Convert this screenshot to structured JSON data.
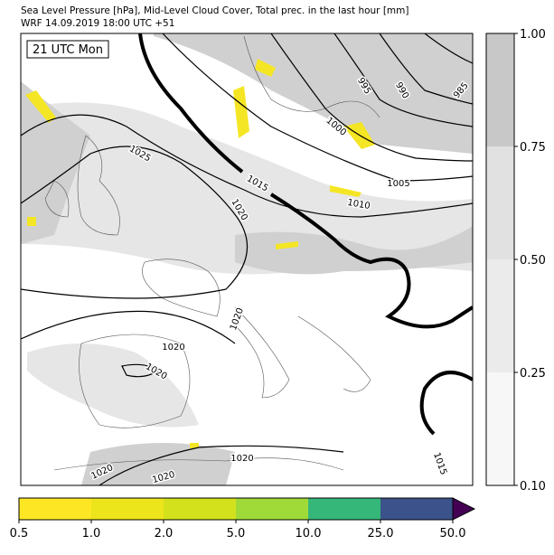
{
  "header": {
    "title": "Sea Level Pressure [hPa], Mid-Level Cloud Cover, Total prec. in the last hour [mm]",
    "subtitle": "WRF 14.09.2019 18:00 UTC +51"
  },
  "map": {
    "time_label": "21 UTC Mon",
    "contour_labels": [
      995,
      990,
      985,
      1000,
      1005,
      1010,
      1015,
      1020,
      1025,
      1020,
      1020,
      1020,
      1020,
      1020,
      1020,
      1015
    ]
  },
  "cloud_colorbar": {
    "colors": [
      "#f7f7f7",
      "#ebebeb",
      "#e1e1e1",
      "#c8c8c8"
    ],
    "ticks": [
      {
        "value": 0.1,
        "label": "0.10"
      },
      {
        "value": 0.25,
        "label": "0.25"
      },
      {
        "value": 0.5,
        "label": "0.50"
      },
      {
        "value": 0.75,
        "label": "0.75"
      },
      {
        "value": 1,
        "label": "1.00"
      }
    ]
  },
  "precip_colorbar": {
    "colors": [
      "#fde725",
      "#ede51b",
      "#d3e11c",
      "#a0da39",
      "#35b779",
      "#3b528b"
    ],
    "extend_color": "#440154",
    "ticks": [
      0.5,
      {
        "value": 1,
        "label": "1.0"
      },
      {
        "value": 2,
        "label": "2.0"
      },
      {
        "value": 5,
        "label": "5.0"
      },
      {
        "value": 10,
        "label": "10.0"
      },
      {
        "value": 25,
        "label": "25.0"
      },
      {
        "value": 50,
        "label": "50.0"
      }
    ]
  }
}
